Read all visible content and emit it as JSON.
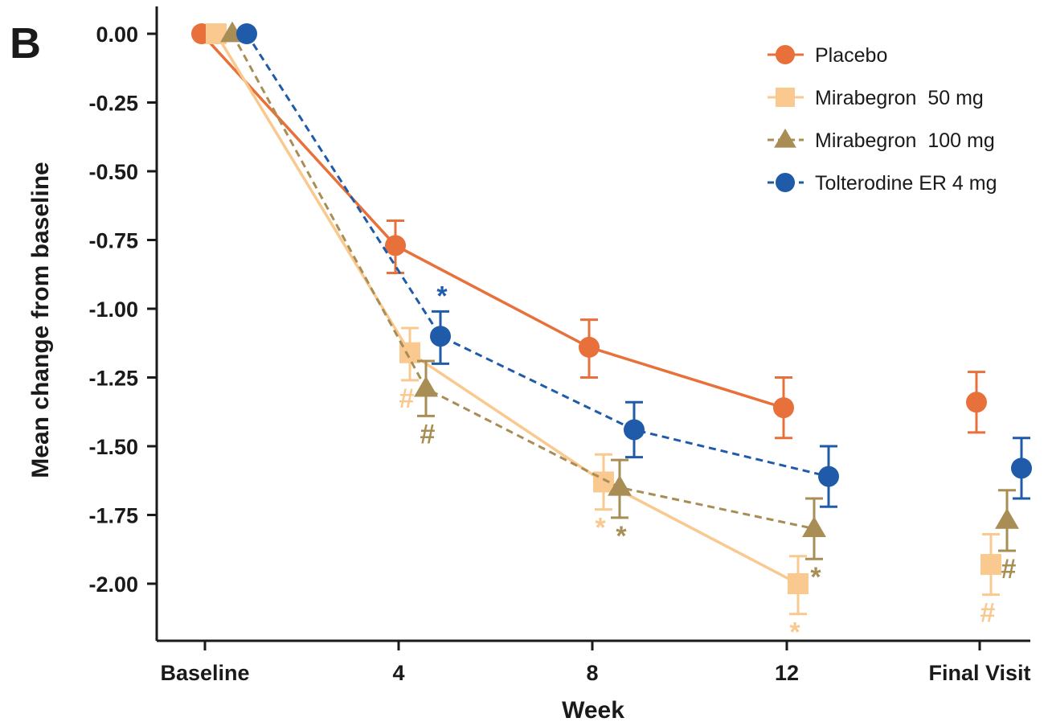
{
  "panel_label": "B",
  "colors": {
    "placebo": "#E8703A",
    "mira50": "#F9C98F",
    "mira100": "#A88D55",
    "tolterodine": "#1F5BA8",
    "axis": "#1a1a1a"
  },
  "chart_data": {
    "type": "line",
    "xlabel": "Week",
    "ylabel": "Mean change from baseline",
    "categories": [
      "Baseline",
      "4",
      "8",
      "12",
      "Final Visit"
    ],
    "ylim": [
      -2.2,
      0.08
    ],
    "y_ticks": [
      0.0,
      -0.25,
      -0.5,
      -0.75,
      -1.0,
      -1.25,
      -1.5,
      -1.75,
      -2.0
    ],
    "y_tick_labels": [
      "0.00",
      "-0.25",
      "-0.50",
      "-0.75",
      "-1.00",
      "-1.25",
      "-1.50",
      "-1.75",
      "-2.00"
    ],
    "grid": false,
    "legend_position": "top-right",
    "series": [
      {
        "key": "placebo",
        "name": "Placebo",
        "marker": "circle",
        "dashed": false,
        "values": [
          0.0,
          -0.77,
          -1.14,
          -1.36,
          -1.34
        ],
        "err_low": [
          null,
          -0.87,
          -1.25,
          -1.47,
          -1.45
        ],
        "err_high": [
          null,
          -0.68,
          -1.04,
          -1.25,
          -1.23
        ],
        "sig": [
          null,
          null,
          null,
          null,
          null
        ]
      },
      {
        "key": "mira50",
        "name": "Mirabegron  50 mg",
        "marker": "square",
        "dashed": false,
        "values": [
          0.0,
          -1.16,
          -1.63,
          -2.0,
          -1.93
        ],
        "err_low": [
          null,
          -1.26,
          -1.73,
          -2.11,
          -2.04
        ],
        "err_high": [
          null,
          -1.07,
          -1.53,
          -1.9,
          -1.82
        ],
        "sig": [
          null,
          "#",
          "*",
          "*",
          "#"
        ]
      },
      {
        "key": "mira100",
        "name": "Mirabegron  100 mg",
        "marker": "triangle",
        "dashed": true,
        "values": [
          0.0,
          -1.29,
          -1.65,
          -1.8,
          -1.77
        ],
        "err_low": [
          null,
          -1.39,
          -1.76,
          -1.91,
          -1.88
        ],
        "err_high": [
          null,
          -1.19,
          -1.55,
          -1.69,
          -1.66
        ],
        "sig": [
          null,
          "#",
          "*",
          "*",
          "#"
        ]
      },
      {
        "key": "tolterodine",
        "name": "Tolterodine ER 4 mg",
        "marker": "circle",
        "dashed": true,
        "values": [
          0.0,
          -1.1,
          -1.44,
          -1.61,
          -1.58
        ],
        "err_low": [
          null,
          -1.2,
          -1.54,
          -1.72,
          -1.69
        ],
        "err_high": [
          null,
          -1.01,
          -1.34,
          -1.5,
          -1.47
        ],
        "sig": [
          null,
          "*",
          null,
          null,
          null
        ]
      }
    ]
  }
}
